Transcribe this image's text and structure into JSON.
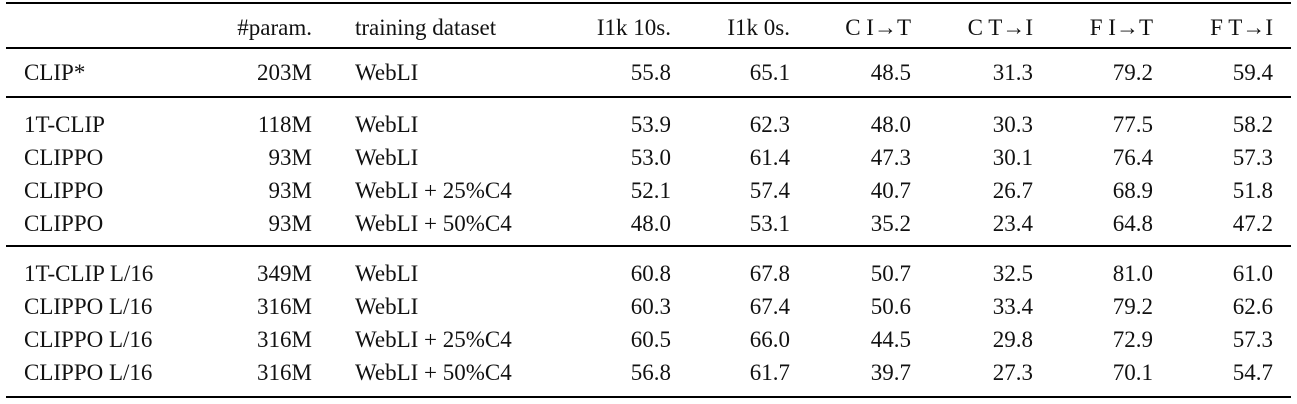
{
  "table": {
    "header": [
      "#param.",
      "training dataset",
      "I1k 10s.",
      "I1k 0s.",
      "C I→T",
      "C T→I",
      "F I→T",
      "F T→I"
    ],
    "groups": [
      {
        "rows": [
          [
            "CLIP*",
            "203M",
            "WebLI",
            "55.8",
            "65.1",
            "48.5",
            "31.3",
            "79.2",
            "59.4"
          ]
        ]
      },
      {
        "rows": [
          [
            "1T-CLIP",
            "118M",
            "WebLI",
            "53.9",
            "62.3",
            "48.0",
            "30.3",
            "77.5",
            "58.2"
          ],
          [
            "CLIPPO",
            "93M",
            "WebLI",
            "53.0",
            "61.4",
            "47.3",
            "30.1",
            "76.4",
            "57.3"
          ],
          [
            "CLIPPO",
            "93M",
            "WebLI + 25%C4",
            "52.1",
            "57.4",
            "40.7",
            "26.7",
            "68.9",
            "51.8"
          ],
          [
            "CLIPPO",
            "93M",
            "WebLI + 50%C4",
            "48.0",
            "53.1",
            "35.2",
            "23.4",
            "64.8",
            "47.2"
          ]
        ]
      },
      {
        "rows": [
          [
            "1T-CLIP L/16",
            "349M",
            "WebLI",
            "60.8",
            "67.8",
            "50.7",
            "32.5",
            "81.0",
            "61.0"
          ],
          [
            "CLIPPO L/16",
            "316M",
            "WebLI",
            "60.3",
            "67.4",
            "50.6",
            "33.4",
            "79.2",
            "62.6"
          ],
          [
            "CLIPPO L/16",
            "316M",
            "WebLI + 25%C4",
            "60.5",
            "66.0",
            "44.5",
            "29.8",
            "72.9",
            "57.3"
          ],
          [
            "CLIPPO L/16",
            "316M",
            "WebLI + 50%C4",
            "56.8",
            "61.7",
            "39.7",
            "27.3",
            "70.1",
            "54.7"
          ]
        ]
      }
    ]
  }
}
